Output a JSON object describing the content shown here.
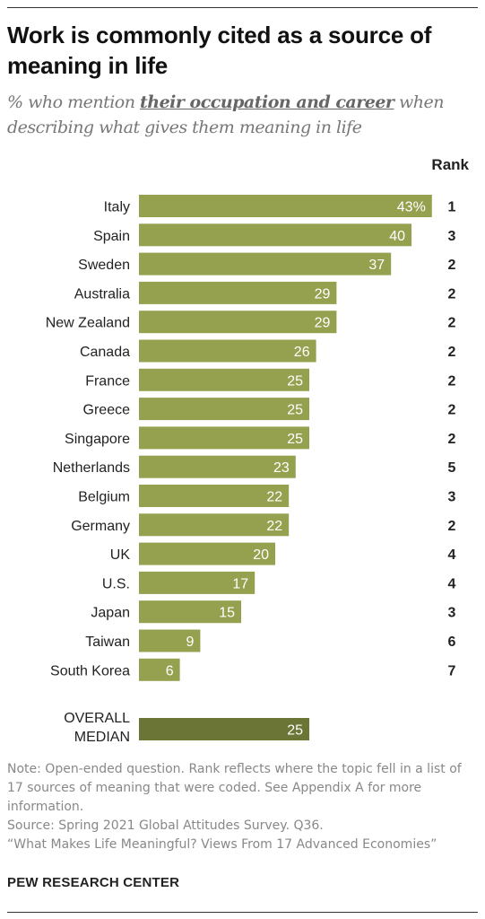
{
  "title": "Work is commonly cited as a source of meaning in life",
  "subtitle": {
    "prefix": "% who mention ",
    "emphasis": "their occupation and career",
    "suffix": " when describing what gives them meaning in life"
  },
  "rank_header": "Rank",
  "colors": {
    "bar": "#95a14f",
    "median_bar": "#6b7536",
    "bar_label": "#ffffff"
  },
  "chart_data": {
    "type": "bar",
    "orientation": "horizontal",
    "categories": [
      "Italy",
      "Spain",
      "Sweden",
      "Australia",
      "New Zealand",
      "Canada",
      "France",
      "Greece",
      "Singapore",
      "Netherlands",
      "Belgium",
      "Germany",
      "UK",
      "U.S.",
      "Japan",
      "Taiwan",
      "South Korea"
    ],
    "values": [
      43,
      40,
      37,
      29,
      29,
      26,
      25,
      25,
      25,
      23,
      22,
      22,
      20,
      17,
      15,
      9,
      6
    ],
    "value_labels": [
      "43%",
      "40",
      "37",
      "29",
      "29",
      "26",
      "25",
      "25",
      "25",
      "23",
      "22",
      "22",
      "20",
      "17",
      "15",
      "9",
      "6"
    ],
    "ranks": [
      "1",
      "3",
      "2",
      "2",
      "2",
      "2",
      "2",
      "2",
      "2",
      "5",
      "3",
      "2",
      "4",
      "4",
      "3",
      "6",
      "7"
    ],
    "median": {
      "label_line1": "OVERALL",
      "label_line2": "MEDIAN",
      "value": 25,
      "value_label": "25"
    },
    "xlim": [
      0,
      43
    ],
    "grid": false,
    "legend": "none"
  },
  "notes": {
    "note": "Note: Open-ended question. Rank reflects where the topic fell in a list of 17 sources of meaning that were coded. See Appendix A for more information.",
    "source": "Source: Spring 2021 Global Attitudes Survey. Q36.",
    "report": "“What Makes Life Meaningful? Views From 17 Advanced Economies”"
  },
  "brand": "PEW RESEARCH CENTER"
}
